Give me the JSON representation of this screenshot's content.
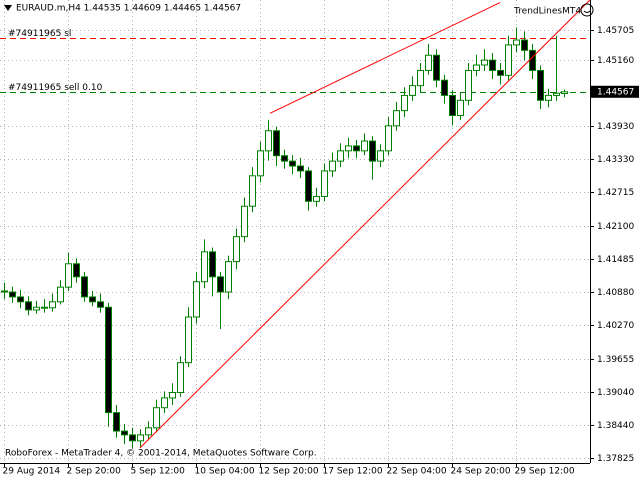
{
  "chart_data": {
    "type": "candlestick",
    "title": "EURAUD.m,H4  1.44535 1.44609 1.44465 1.44567",
    "indicator": "TrendLinesMT4",
    "footer": "RoboForex - MetaTrader 4, © 2001-2014, MetaQuotes Software Corp.",
    "open": [
      1.409,
      1.4088,
      1.4079,
      1.407,
      1.4055,
      1.406,
      1.4059,
      1.407,
      1.4097,
      1.414,
      1.4116,
      1.4079,
      1.407,
      1.406,
      1.3866,
      1.3832,
      1.3825,
      1.3814,
      1.3825,
      1.3838,
      1.3875,
      1.3893,
      1.3903,
      1.3958,
      1.4042,
      1.4107,
      1.4162,
      1.4116,
      1.4088,
      1.4144,
      1.419,
      1.4246,
      1.4302,
      1.4348,
      1.4385,
      1.4339,
      1.4329,
      1.432,
      1.4311,
      1.4255,
      1.4264,
      1.4311,
      1.4329,
      1.4348,
      1.4357,
      1.4348,
      1.4366,
      1.4329,
      1.4348,
      1.4394,
      1.4422,
      1.445,
      1.4468,
      1.4496,
      1.4524,
      1.4478,
      1.445,
      1.4413,
      1.4441,
      1.4496,
      1.4506,
      1.4515,
      1.4496,
      1.4487,
      1.4543,
      1.4552,
      1.4533,
      1.4496,
      1.4441,
      1.445,
      1.44535
    ],
    "high": [
      1.4105,
      1.4098,
      1.4092,
      1.408,
      1.4072,
      1.4075,
      1.4085,
      1.411,
      1.416,
      1.415,
      1.4125,
      1.409,
      1.4085,
      1.4068,
      1.388,
      1.3845,
      1.3838,
      1.3835,
      1.385,
      1.389,
      1.3905,
      1.392,
      1.397,
      1.406,
      1.4125,
      1.4185,
      1.417,
      1.4125,
      1.4155,
      1.4205,
      1.4262,
      1.4318,
      1.4365,
      1.4405,
      1.4392,
      1.435,
      1.434,
      1.4335,
      1.4318,
      1.428,
      1.4325,
      1.4345,
      1.4362,
      1.4372,
      1.4368,
      1.438,
      1.4375,
      1.436,
      1.441,
      1.4438,
      1.4465,
      1.4485,
      1.451,
      1.4545,
      1.4535,
      1.4488,
      1.446,
      1.4455,
      1.451,
      1.4525,
      1.4535,
      1.4528,
      1.451,
      1.456,
      1.4575,
      1.4568,
      1.4545,
      1.4505,
      1.4462,
      1.456,
      1.44609
    ],
    "low": [
      1.4075,
      1.4068,
      1.4058,
      1.4045,
      1.4048,
      1.405,
      1.4052,
      1.4065,
      1.409,
      1.4105,
      1.407,
      1.4062,
      1.405,
      1.384,
      1.382,
      1.3808,
      1.38,
      1.3802,
      1.3815,
      1.383,
      1.3865,
      1.388,
      1.3895,
      1.395,
      1.403,
      1.4095,
      1.408,
      1.402,
      1.4075,
      1.413,
      1.418,
      1.4235,
      1.429,
      1.433,
      1.432,
      1.4315,
      1.4305,
      1.4298,
      1.4238,
      1.4245,
      1.4255,
      1.43,
      1.4318,
      1.4335,
      1.4335,
      1.434,
      1.4295,
      1.4318,
      1.434,
      1.4385,
      1.441,
      1.444,
      1.4455,
      1.4488,
      1.4465,
      1.4435,
      1.4395,
      1.4405,
      1.4432,
      1.4485,
      1.4495,
      1.448,
      1.447,
      1.4478,
      1.453,
      1.4515,
      1.448,
      1.4425,
      1.4428,
      1.444,
      1.44465
    ],
    "close": [
      1.4088,
      1.4079,
      1.407,
      1.4055,
      1.406,
      1.4059,
      1.407,
      1.4097,
      1.414,
      1.4116,
      1.4079,
      1.407,
      1.406,
      1.3866,
      1.3832,
      1.3825,
      1.3814,
      1.3825,
      1.3838,
      1.3875,
      1.3893,
      1.3903,
      1.3958,
      1.4042,
      1.4107,
      1.4162,
      1.4116,
      1.4088,
      1.4144,
      1.419,
      1.4246,
      1.4302,
      1.4348,
      1.4385,
      1.4339,
      1.4329,
      1.432,
      1.4311,
      1.4255,
      1.4264,
      1.4311,
      1.4329,
      1.4348,
      1.4357,
      1.4348,
      1.4366,
      1.4329,
      1.4348,
      1.4394,
      1.4422,
      1.445,
      1.4468,
      1.4496,
      1.4524,
      1.4478,
      1.445,
      1.4413,
      1.4441,
      1.4496,
      1.4506,
      1.4515,
      1.4496,
      1.4487,
      1.4543,
      1.4552,
      1.4533,
      1.4496,
      1.4441,
      1.445,
      1.4454,
      1.44567
    ],
    "up_color": "#ffffff",
    "down_color": "#000000",
    "outline_color": "#008000",
    "ylim": [
      1.37732,
      1.46257
    ],
    "yticks": [
      1.45705,
      {
        "value": 1.4516,
        "label": "1.45160"
      },
      {
        "value": 1.4393,
        "label": "1.43930"
      },
      {
        "value": 1.4333,
        "label": "1.43330"
      },
      1.42715,
      {
        "value": 1.421,
        "label": "1.42100"
      },
      1.41485,
      {
        "value": 1.4088,
        "label": "1.40880"
      },
      {
        "value": 1.4027,
        "label": "1.40270"
      },
      1.39655,
      {
        "value": 1.3904,
        "label": "1.39040"
      },
      {
        "value": 1.3844,
        "label": "1.38440"
      },
      1.37825
    ],
    "xticks": [
      {
        "value": 0,
        "label": "29 Aug 2014"
      },
      {
        "value": 8,
        "label": "2 Sep 20:00"
      },
      {
        "value": 16,
        "label": "5 Sep 12:00"
      },
      {
        "value": 24,
        "label": "10 Sep 04:00"
      },
      {
        "value": 32,
        "label": "12 Sep 20:00"
      },
      {
        "value": 40,
        "label": "17 Sep 12:00"
      },
      {
        "value": 48,
        "label": "22 Sep 04:00"
      },
      {
        "value": 56,
        "label": "24 Sep 20:00"
      },
      {
        "value": 64,
        "label": "29 Sep 12:00"
      }
    ],
    "grid": true,
    "trendlines": [
      {
        "color": "#ff0000",
        "x": [
          33.25,
          62
        ],
        "values": [
          1.4417,
          1.4621
        ]
      },
      {
        "color": "#ff0000",
        "x": [
          17,
          73.25
        ],
        "values": [
          1.3801,
          1.4626
        ]
      }
    ],
    "levels": [
      {
        "label": "#74911965 sl",
        "value": 1.4556,
        "color": "#ff0000"
      },
      {
        "label": "#74911965 sell 0.10",
        "value": 1.44567,
        "color": "#008000"
      }
    ]
  }
}
